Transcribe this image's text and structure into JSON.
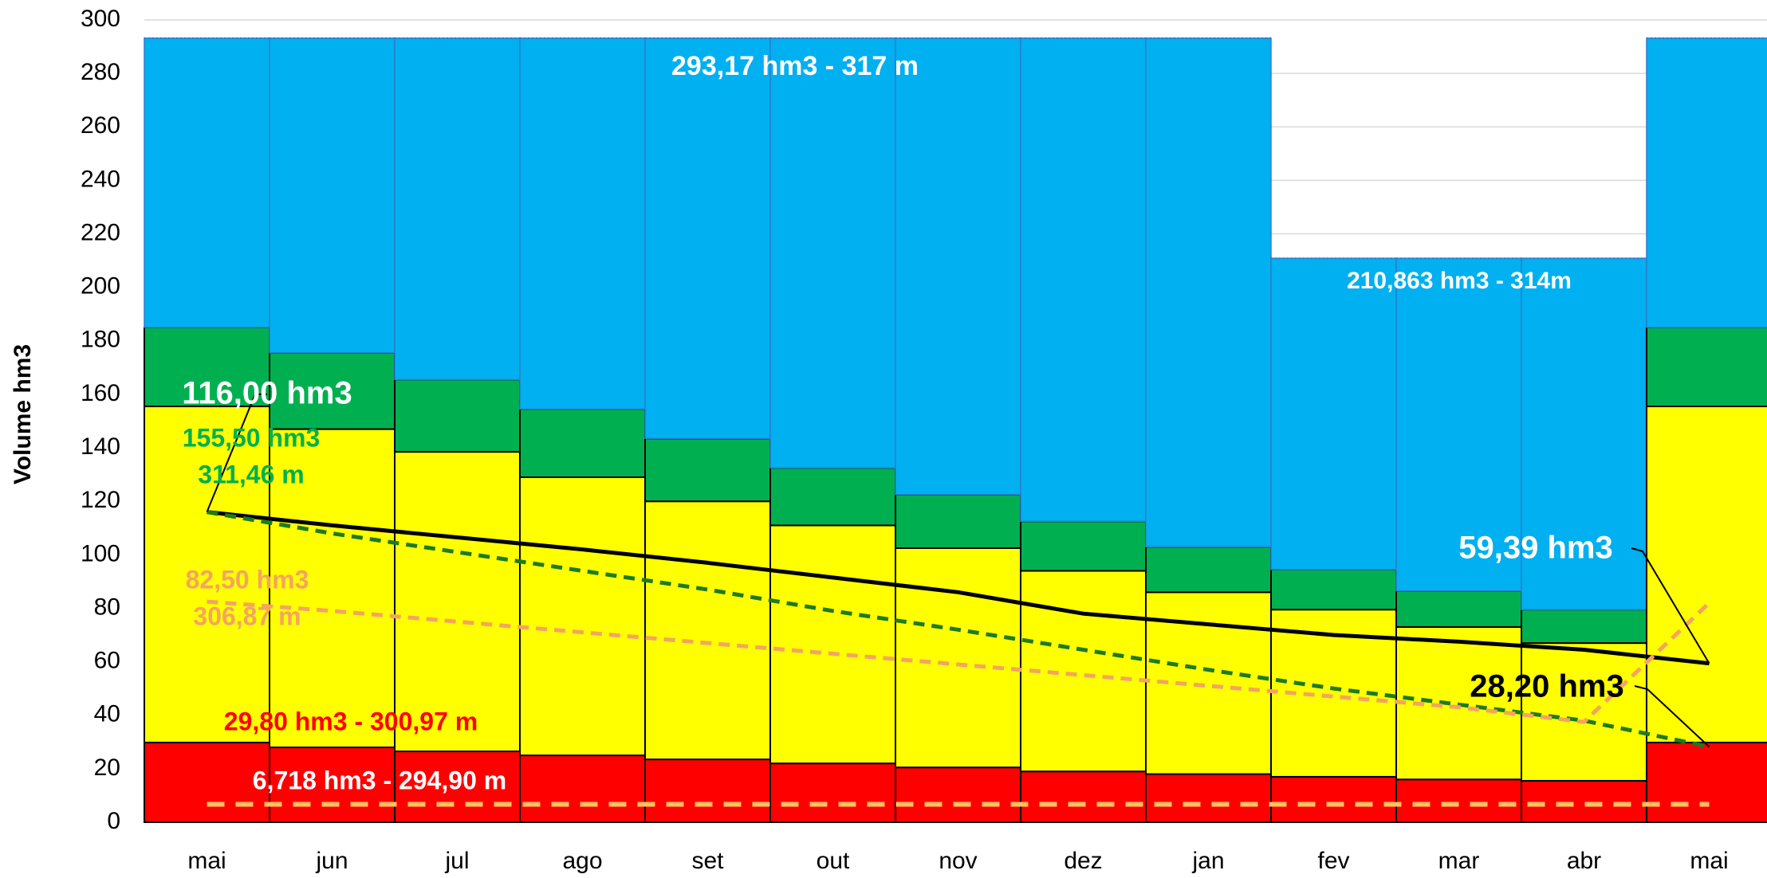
{
  "chart_data": {
    "type": "stacked_bar",
    "y_label": "Volume hm3",
    "categories": [
      "mai",
      "jun",
      "jul",
      "ago",
      "set",
      "out",
      "nov",
      "dez",
      "jan",
      "fev",
      "mar",
      "abr",
      "mai"
    ],
    "series": [
      {
        "name": "red",
        "color": "#ff0000",
        "values": [
          29.8,
          28,
          26.5,
          25,
          23.5,
          22,
          20.5,
          19,
          18,
          17,
          16,
          15.5,
          29.8
        ]
      },
      {
        "name": "yellow",
        "color": "#ffff00",
        "values": [
          125.7,
          119,
          112,
          104,
          96.5,
          89,
          82,
          75,
          68,
          62.5,
          57,
          51.5,
          125.7
        ]
      },
      {
        "name": "green",
        "color": "#00b050",
        "values": [
          29.5,
          28.5,
          27,
          25.5,
          23.5,
          21.5,
          20,
          18.5,
          17,
          15,
          13.5,
          12.5,
          29.5
        ]
      },
      {
        "name": "blue",
        "color": "#00b0f0",
        "values": [
          108.17,
          117.67,
          127.67,
          138.67,
          149.67,
          160.67,
          170.67,
          180.67,
          190.17,
          116.363,
          124.363,
          131.363,
          108.17
        ]
      }
    ],
    "lines": [
      {
        "color": "#000000",
        "dash": false,
        "values": [
          116,
          111,
          106.5,
          102,
          97,
          91.5,
          86,
          78,
          74,
          70,
          67.5,
          64.5,
          59.39
        ]
      },
      {
        "color": "#1e7b1e",
        "dash": true,
        "values": [
          116,
          108,
          101,
          94,
          87,
          79,
          72,
          64.5,
          57,
          50,
          44,
          38,
          28.2
        ]
      },
      {
        "color": "#f4a460",
        "dash": true,
        "values": [
          82.5,
          79,
          75,
          71,
          67,
          63,
          59,
          55,
          51,
          47,
          43,
          37.5,
          82
        ]
      }
    ],
    "reference_line": {
      "color": "#ffc060",
      "value": 6.718
    },
    "annotations": [
      "293,17 hm3 - 317 m",
      "210,863 hm3 - 314m",
      "116,00 hm3",
      "155,50 hm3",
      "311,46 m",
      "82,50 hm3",
      "306,87 m",
      "29,80 hm3 - 300,97 m",
      "6,718 hm3 - 294,90 m",
      "59,39 hm3",
      "28,20 hm3"
    ],
    "ylim": [
      0,
      300
    ],
    "yticks": [
      0,
      20,
      40,
      60,
      80,
      100,
      120,
      140,
      160,
      180,
      200,
      220,
      240,
      260,
      280,
      300
    ],
    "grid": true
  }
}
